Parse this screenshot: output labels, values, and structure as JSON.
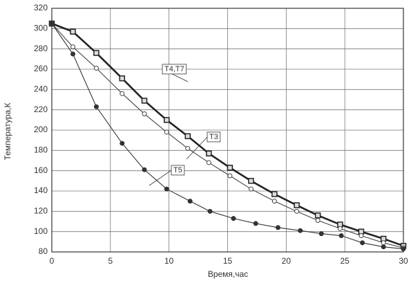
{
  "chart_data": {
    "type": "line",
    "x_label": "Время,час",
    "y_label": "Температура,К",
    "xlim": [
      0,
      30
    ],
    "xticks": [
      0,
      5,
      10,
      15,
      20,
      25,
      30
    ],
    "ylim": [
      80,
      320
    ],
    "yticks": [
      80,
      100,
      120,
      140,
      160,
      180,
      200,
      220,
      240,
      260,
      280,
      300,
      320
    ],
    "grid": true,
    "series": [
      {
        "name": "T4,T7",
        "color": "#222222",
        "marker": "square",
        "x": [
          0,
          1.8,
          3.8,
          6,
          7.9,
          9.8,
          11.6,
          13.4,
          15.2,
          17,
          19,
          20.9,
          22.7,
          24.6,
          26.4,
          28.3,
          30
        ],
        "values": [
          305,
          297,
          276,
          251,
          229,
          210,
          194,
          177,
          163,
          150,
          137,
          126,
          116,
          107,
          100,
          93,
          86
        ]
      },
      {
        "name": "T3",
        "color": "#444444",
        "marker": "open-circle",
        "x": [
          0,
          1.8,
          3.8,
          6,
          7.9,
          9.8,
          11.6,
          13.4,
          15.2,
          17,
          19,
          20.9,
          22.7,
          24.6,
          26.4,
          28.3,
          30
        ],
        "values": [
          305,
          282,
          261,
          236,
          216,
          198,
          182,
          168,
          155,
          142,
          130,
          120,
          111,
          103,
          96,
          89,
          84
        ]
      },
      {
        "name": "T5",
        "color": "#333333",
        "marker": "filled-circle",
        "x": [
          0,
          1.8,
          3.8,
          6,
          7.9,
          9.8,
          11.8,
          13.5,
          15.5,
          17.4,
          19.3,
          21.2,
          23,
          24.7,
          26.5,
          28.3,
          30
        ],
        "values": [
          305,
          275,
          223,
          187,
          161,
          142,
          130,
          120,
          113,
          108,
          104,
          101,
          98,
          96,
          89,
          85,
          83
        ]
      }
    ]
  }
}
